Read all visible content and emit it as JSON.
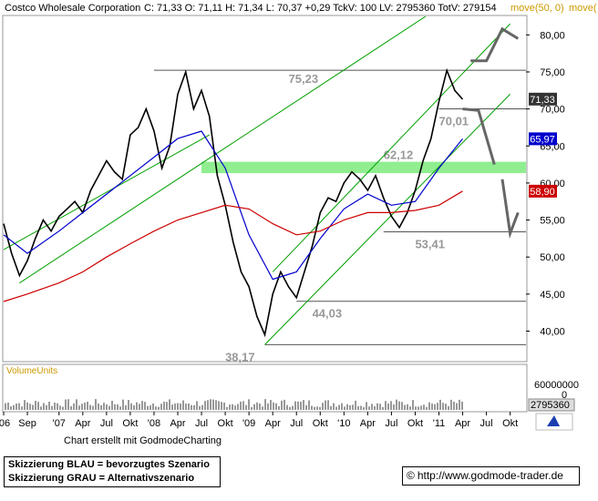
{
  "header": {
    "title": "Costco Wholesale Corporation",
    "quote": "C: 71,33  O: 71,11  H: 71,34  L: 70,37  +0,29  TckV: 100  LV: 2795360  TotV: 279154",
    "ma_label": "move(50, 0)",
    "ma_label2": "move("
  },
  "volume_panel": {
    "label": "VolumeUnits",
    "scale_top": "60000000",
    "scale_mid": "0",
    "last_volume": "2795360"
  },
  "footer": {
    "credit": "Chart erstellt mit GodmodeCharting",
    "legend_blue": "Skizzierung BLAU = bevorzugtes Szenario",
    "legend_gray": "Skizzierung GRAU = Alternativszenario",
    "url": "http://www.godmode-trader.de",
    "url_icon": "copyright-icon"
  },
  "colors": {
    "price": "#000000",
    "ma_blue": "#0000cc",
    "ma_red": "#cc0000",
    "channel": "#00a000",
    "horizontal": "#555555",
    "zone": "#90ee90",
    "scenario": "#666666"
  },
  "chart_data": {
    "type": "line",
    "title": "Costco Wholesale Corporation",
    "ylim": [
      36,
      82.5
    ],
    "y_ticks": [
      "40,00",
      "45,00",
      "50,00",
      "55,00",
      "60,00",
      "65,00",
      "70,00",
      "75,00",
      "80,00"
    ],
    "y_tick_values": [
      40,
      45,
      50,
      55,
      60,
      65,
      70,
      75,
      80
    ],
    "x_ticks": [
      "'06",
      "Sep",
      "'07",
      "Apr",
      "Jul",
      "Okt",
      "'08",
      "Apr",
      "Jul",
      "Okt",
      "'09",
      "Apr",
      "Jul",
      "Okt",
      "'10",
      "Apr",
      "Jul",
      "Okt",
      "'11",
      "Apr",
      "Jul",
      "Okt"
    ],
    "x_tick_dates": [
      "2006-06",
      "2006-09",
      "2007-01",
      "2007-04",
      "2007-07",
      "2007-10",
      "2008-01",
      "2008-04",
      "2008-07",
      "2008-10",
      "2009-01",
      "2009-04",
      "2009-07",
      "2009-10",
      "2010-01",
      "2010-04",
      "2010-07",
      "2010-10",
      "2011-01",
      "2011-04",
      "2011-07",
      "2011-10"
    ],
    "series": [
      {
        "name": "Costco Wholesale Corporation",
        "color": "#000000",
        "x": [
          "2006-06",
          "2006-07",
          "2006-08",
          "2006-09",
          "2006-10",
          "2006-11",
          "2006-12",
          "2007-01",
          "2007-02",
          "2007-03",
          "2007-04",
          "2007-05",
          "2007-06",
          "2007-07",
          "2007-08",
          "2007-09",
          "2007-10",
          "2007-11",
          "2007-12",
          "2008-01",
          "2008-02",
          "2008-03",
          "2008-04",
          "2008-05",
          "2008-06",
          "2008-07",
          "2008-08",
          "2008-09",
          "2008-10",
          "2008-11",
          "2008-12",
          "2009-01",
          "2009-02",
          "2009-03",
          "2009-04",
          "2009-05",
          "2009-06",
          "2009-07",
          "2009-08",
          "2009-09",
          "2009-10",
          "2009-11",
          "2009-12",
          "2010-01",
          "2010-02",
          "2010-03",
          "2010-04",
          "2010-05",
          "2010-06",
          "2010-07",
          "2010-08",
          "2010-09",
          "2010-10",
          "2010-11",
          "2010-12",
          "2011-01",
          "2011-02",
          "2011-03",
          "2011-04"
        ],
        "y": [
          54.5,
          50.5,
          47.5,
          49.5,
          52.5,
          55,
          53.5,
          55.5,
          56.5,
          57.5,
          56,
          59,
          61,
          63,
          61.5,
          60.5,
          66.5,
          67.5,
          70,
          67,
          62,
          65,
          72,
          75,
          70,
          72.5,
          69,
          61,
          57,
          52,
          48,
          46,
          42,
          39.5,
          45,
          48,
          46,
          44.5,
          48,
          51.5,
          56,
          58,
          57.5,
          60,
          61.5,
          60.5,
          59,
          61,
          58,
          55.5,
          54,
          56,
          59,
          63,
          66,
          71,
          75.2,
          72.5,
          71.3
        ]
      },
      {
        "name": "move(50, 0)",
        "color": "#0000cc",
        "x": [
          "2006-06",
          "2006-09",
          "2007-01",
          "2007-04",
          "2007-07",
          "2007-10",
          "2008-01",
          "2008-04",
          "2008-07",
          "2008-10",
          "2009-01",
          "2009-04",
          "2009-07",
          "2009-10",
          "2010-01",
          "2010-04",
          "2010-07",
          "2010-10",
          "2011-01",
          "2011-04"
        ],
        "y": [
          53,
          50.5,
          53.5,
          56,
          58.5,
          61,
          63.5,
          66,
          67,
          62,
          53,
          47,
          48,
          52.5,
          56.5,
          58.5,
          57,
          57.5,
          62,
          65.97
        ]
      },
      {
        "name": "move(",
        "color": "#cc0000",
        "x": [
          "2006-06",
          "2006-09",
          "2007-01",
          "2007-04",
          "2007-07",
          "2007-10",
          "2008-01",
          "2008-04",
          "2008-07",
          "2008-10",
          "2009-01",
          "2009-04",
          "2009-07",
          "2009-10",
          "2010-01",
          "2010-04",
          "2010-07",
          "2010-10",
          "2011-01",
          "2011-04"
        ],
        "y": [
          44,
          45,
          46.5,
          48,
          50,
          51.8,
          53.5,
          55,
          56,
          57,
          56.5,
          54.5,
          53,
          53.5,
          55,
          56,
          56,
          56.3,
          57,
          58.9
        ]
      }
    ],
    "horizontal_levels": [
      {
        "value": 75.23,
        "label": "75,23",
        "from": "2008-01",
        "to": "2011-10"
      },
      {
        "value": 70.01,
        "label": "70,01",
        "from": "2011-01",
        "to": "2011-10"
      },
      {
        "value": 53.41,
        "label": "53,41",
        "from": "2010-06",
        "to": "2011-10"
      },
      {
        "value": 44.03,
        "label": "44,03",
        "from": "2009-07",
        "to": "2011-10"
      },
      {
        "value": 38.17,
        "label": "38,17",
        "from": "2009-03",
        "to": "2011-10"
      }
    ],
    "zone": {
      "label": "62,12",
      "low": 61.7,
      "high": 62.5,
      "from": "2008-07",
      "to": "2011-10"
    },
    "value_tags": [
      {
        "label": "71,33",
        "value": 71.33,
        "fill": "#333333"
      },
      {
        "label": "65,97",
        "value": 65.97,
        "fill": "#0000cc"
      },
      {
        "label": "58,90",
        "value": 58.9,
        "fill": "#cc0000"
      }
    ],
    "channels": [
      {
        "x1": "2006-08",
        "y1": 46.5,
        "x2": "2011-10",
        "y2": 90
      },
      {
        "x1": "2006-06",
        "y1": 51,
        "x2": "2008-08",
        "y2": 66.5
      },
      {
        "x1": "2009-03",
        "y1": 38.17,
        "x2": "2011-10",
        "y2": 72
      },
      {
        "x1": "2009-04",
        "y1": 48,
        "x2": "2011-10",
        "y2": 81.5
      }
    ],
    "scenario_paths": [
      {
        "x": [
          "2011-05",
          "2011-07",
          "2011-09",
          "2011-11"
        ],
        "y": [
          76.5,
          76.5,
          80.8,
          79.5
        ]
      },
      {
        "x": [
          "2011-04",
          "2011-06",
          "2011-08"
        ],
        "y": [
          70,
          69.8,
          62.5
        ]
      },
      {
        "x": [
          "2011-09",
          "2011-10",
          "2011-11"
        ],
        "y": [
          60.5,
          53.2,
          56
        ]
      }
    ]
  }
}
